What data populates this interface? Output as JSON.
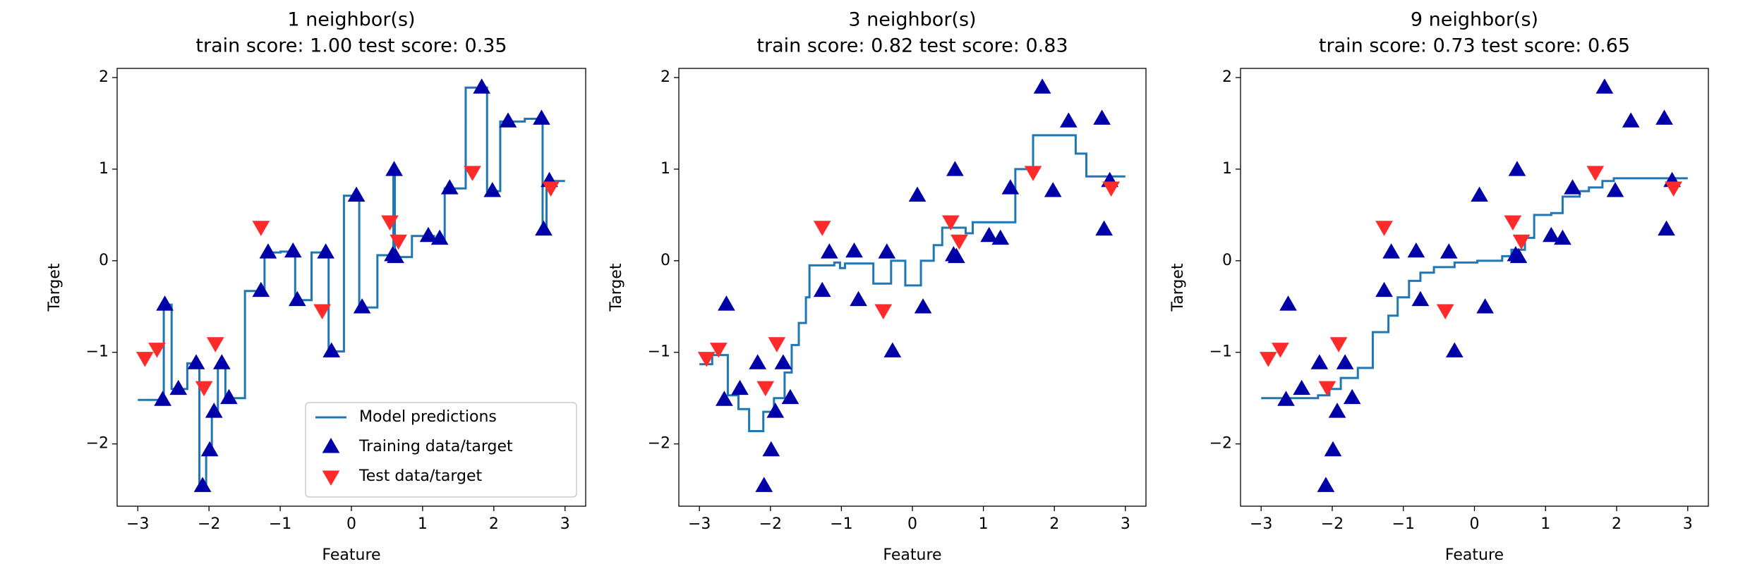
{
  "chart_data": [
    {
      "type": "line",
      "title": "1 neighbor(s)",
      "subtitle": "train score: 1.00 test score: 0.35",
      "x_label": "Feature",
      "y_label": "Target",
      "xlim": [
        -3.29,
        3.29
      ],
      "ylim": [
        -2.68,
        2.1
      ],
      "xticks": [
        {
          "value": -3,
          "label": "−3"
        },
        {
          "value": -2,
          "label": "−2"
        },
        {
          "value": -1,
          "label": "−1"
        },
        0,
        1,
        2,
        3
      ],
      "yticks": [
        {
          "value": -2,
          "label": "−2"
        },
        {
          "value": -1,
          "label": "−1"
        },
        0,
        1,
        2
      ],
      "legend": "lower right",
      "series": [
        {
          "name": "Model predictions",
          "color": "#1f77b4",
          "drawstyle": "steps-post",
          "x": [
            -3,
            -2.635,
            -2.525,
            -2.305,
            -2.135,
            -2.04,
            -1.96,
            -1.875,
            -1.77,
            -1.495,
            -1.22,
            -0.995,
            -0.79,
            -0.56,
            -0.32,
            -0.105,
            0.11,
            0.365,
            0.59,
            0.61,
            0.85,
            1.16,
            1.31,
            1.605,
            1.905,
            2.09,
            2.435,
            2.685,
            2.74,
            3
          ],
          "values": [
            -1.52,
            -0.48,
            -1.4,
            -1.12,
            -2.46,
            -2.07,
            -1.65,
            -1.12,
            -1.5,
            -0.33,
            0.09,
            0.1,
            -0.43,
            0.09,
            -0.99,
            0.71,
            -0.51,
            0.06,
            0.99,
            0.04,
            0.27,
            0.24,
            0.79,
            1.89,
            0.76,
            1.52,
            1.55,
            0.34,
            0.87,
            0.87
          ]
        },
        {
          "name": "Training data/target",
          "color": "#0000a8",
          "marker": "^",
          "x": [
            -2.65,
            -2.62,
            -2.43,
            -2.18,
            -2.09,
            -1.99,
            -1.93,
            -1.82,
            -1.72,
            -1.27,
            -1.17,
            -0.82,
            -0.76,
            -0.36,
            -0.28,
            0.07,
            0.15,
            0.58,
            0.6,
            0.62,
            1.08,
            1.24,
            1.38,
            1.83,
            1.98,
            2.2,
            2.67,
            2.7,
            2.78
          ],
          "values": [
            -1.52,
            -0.48,
            -1.4,
            -1.12,
            -2.46,
            -2.07,
            -1.65,
            -1.12,
            -1.5,
            -0.33,
            0.09,
            0.1,
            -0.43,
            0.09,
            -0.99,
            0.71,
            -0.51,
            0.06,
            0.99,
            0.04,
            0.27,
            0.24,
            0.79,
            1.89,
            0.76,
            1.52,
            1.55,
            0.34,
            0.87
          ]
        },
        {
          "name": "Test data/target",
          "color": "#ff2a2a",
          "marker": "v",
          "x": [
            -2.9,
            -2.73,
            -2.07,
            -1.91,
            -1.27,
            -0.41,
            0.54,
            0.66,
            1.7,
            2.8
          ],
          "values": [
            -1.06,
            -0.96,
            -1.38,
            -0.9,
            0.37,
            -0.54,
            0.43,
            0.22,
            0.97,
            0.8
          ]
        }
      ]
    },
    {
      "type": "line",
      "title": "3 neighbor(s)",
      "subtitle": "train score: 0.82 test score: 0.83",
      "x_label": "Feature",
      "y_label": "Target",
      "xlim": [
        -3.29,
        3.29
      ],
      "ylim": [
        -2.68,
        2.1
      ],
      "xticks": [
        {
          "value": -3,
          "label": "−3"
        },
        {
          "value": -2,
          "label": "−2"
        },
        {
          "value": -1,
          "label": "−1"
        },
        0,
        1,
        2,
        3
      ],
      "yticks": [
        {
          "value": -2,
          "label": "−2"
        },
        {
          "value": -1,
          "label": "−1"
        },
        0,
        1,
        2
      ],
      "series": [
        {
          "color": "#1f77b4",
          "drawstyle": "steps-post",
          "x": [
            -3,
            -2.82,
            -2.6,
            -2.45,
            -2.3,
            -2.1,
            -1.95,
            -1.8,
            -1.7,
            -1.6,
            -1.5,
            -1.45,
            -1.1,
            -1.02,
            -0.95,
            -0.55,
            -0.3,
            -0.1,
            0.12,
            0.3,
            0.42,
            0.75,
            0.85,
            1.45,
            1.7,
            2.3,
            2.45,
            3
          ],
          "values": [
            -1.13,
            -1.03,
            -1.47,
            -1.62,
            -1.86,
            -1.65,
            -1.5,
            -1.22,
            -0.92,
            -0.68,
            -0.4,
            -0.05,
            -0.02,
            -0.08,
            -0.03,
            -0.25,
            0,
            -0.27,
            0,
            0.17,
            0.36,
            0.3,
            0.42,
            1,
            1.37,
            1.17,
            0.92,
            0.92
          ]
        },
        {
          "color": "#0000a8",
          "marker": "^",
          "x": [
            -2.65,
            -2.62,
            -2.43,
            -2.18,
            -2.09,
            -1.99,
            -1.93,
            -1.82,
            -1.72,
            -1.27,
            -1.17,
            -0.82,
            -0.76,
            -0.36,
            -0.28,
            0.07,
            0.15,
            0.58,
            0.6,
            0.62,
            1.08,
            1.24,
            1.38,
            1.83,
            1.98,
            2.2,
            2.67,
            2.7,
            2.78
          ],
          "values": [
            -1.52,
            -0.48,
            -1.4,
            -1.12,
            -2.46,
            -2.07,
            -1.65,
            -1.12,
            -1.5,
            -0.33,
            0.09,
            0.1,
            -0.43,
            0.09,
            -0.99,
            0.71,
            -0.51,
            0.06,
            0.99,
            0.04,
            0.27,
            0.24,
            0.79,
            1.89,
            0.76,
            1.52,
            1.55,
            0.34,
            0.87
          ]
        },
        {
          "color": "#ff2a2a",
          "marker": "v",
          "x": [
            -2.9,
            -2.73,
            -2.07,
            -1.91,
            -1.27,
            -0.41,
            0.54,
            0.66,
            1.7,
            2.8
          ],
          "values": [
            -1.06,
            -0.96,
            -1.38,
            -0.9,
            0.37,
            -0.54,
            0.43,
            0.22,
            0.97,
            0.8
          ]
        }
      ]
    },
    {
      "type": "line",
      "title": "9 neighbor(s)",
      "subtitle": "train score: 0.73 test score: 0.65",
      "x_label": "Feature",
      "y_label": "Target",
      "xlim": [
        -3.29,
        3.29
      ],
      "ylim": [
        -2.68,
        2.1
      ],
      "xticks": [
        {
          "value": -3,
          "label": "−3"
        },
        {
          "value": -2,
          "label": "−2"
        },
        {
          "value": -1,
          "label": "−1"
        },
        0,
        1,
        2,
        3
      ],
      "yticks": [
        {
          "value": -2,
          "label": "−2"
        },
        {
          "value": -1,
          "label": "−1"
        },
        0,
        1,
        2
      ],
      "series": [
        {
          "color": "#1f77b4",
          "drawstyle": "steps-post",
          "x": [
            -3,
            -2.2,
            -2.04,
            -1.88,
            -1.64,
            -1.43,
            -1.21,
            -1.08,
            -0.92,
            -0.76,
            -0.57,
            -0.28,
            0.04,
            0.39,
            0.52,
            0.71,
            0.84,
            1.08,
            1.24,
            1.48,
            1.61,
            1.8,
            1.96,
            3
          ],
          "values": [
            -1.5,
            -1.47,
            -1.4,
            -1.28,
            -1.17,
            -0.78,
            -0.6,
            -0.4,
            -0.22,
            -0.13,
            -0.07,
            -0.02,
            0,
            0.05,
            0.12,
            0.25,
            0.5,
            0.52,
            0.7,
            0.76,
            0.8,
            0.87,
            0.9,
            0.9
          ]
        },
        {
          "color": "#0000a8",
          "marker": "^",
          "x": [
            -2.65,
            -2.62,
            -2.43,
            -2.18,
            -2.09,
            -1.99,
            -1.93,
            -1.82,
            -1.72,
            -1.27,
            -1.17,
            -0.82,
            -0.76,
            -0.36,
            -0.28,
            0.07,
            0.15,
            0.58,
            0.6,
            0.62,
            1.08,
            1.24,
            1.38,
            1.83,
            1.98,
            2.2,
            2.67,
            2.7,
            2.78
          ],
          "values": [
            -1.52,
            -0.48,
            -1.4,
            -1.12,
            -2.46,
            -2.07,
            -1.65,
            -1.12,
            -1.5,
            -0.33,
            0.09,
            0.1,
            -0.43,
            0.09,
            -0.99,
            0.71,
            -0.51,
            0.06,
            0.99,
            0.04,
            0.27,
            0.24,
            0.79,
            1.89,
            0.76,
            1.52,
            1.55,
            0.34,
            0.87
          ]
        },
        {
          "color": "#ff2a2a",
          "marker": "v",
          "x": [
            -2.9,
            -2.73,
            -2.07,
            -1.91,
            -1.27,
            -0.41,
            0.54,
            0.66,
            1.7,
            2.8
          ],
          "values": [
            -1.06,
            -0.96,
            -1.38,
            -0.9,
            0.37,
            -0.54,
            0.43,
            0.22,
            0.97,
            0.8
          ]
        }
      ]
    }
  ]
}
